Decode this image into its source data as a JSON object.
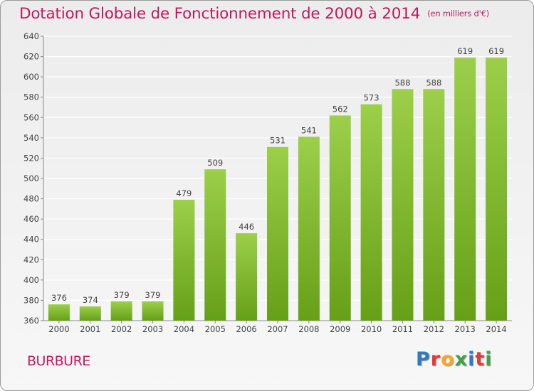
{
  "title": "Dotation Globale de Fonctionnement de 2000 à 2014",
  "unit": "(en milliers d'€)",
  "town": "BURBURE",
  "logo": {
    "letters": [
      "P",
      "r",
      "o",
      "x",
      "i",
      "t",
      "i"
    ],
    "colors": [
      "#2e7bc4",
      "#e53935",
      "#f9a825",
      "#43a047",
      "#2e7bc4",
      "#e53935",
      "#43a047"
    ]
  },
  "colors": {
    "accent": "#c2185b",
    "bar_top": "#9ccf4a",
    "bar_bottom": "#66a017",
    "grid": "#ffffff"
  },
  "chart_data": {
    "type": "bar",
    "categories": [
      "2000",
      "2001",
      "2002",
      "2003",
      "2004",
      "2005",
      "2006",
      "2007",
      "2008",
      "2009",
      "2010",
      "2011",
      "2012",
      "2013",
      "2014"
    ],
    "values": [
      376,
      374,
      379,
      379,
      479,
      509,
      446,
      531,
      541,
      562,
      573,
      588,
      588,
      619,
      619
    ],
    "data_labels": [
      "376",
      "374",
      "379",
      "379",
      "479",
      "509",
      "446",
      "531",
      "541",
      "562",
      "573",
      "588",
      "588",
      "619",
      "619"
    ],
    "ylim": [
      360,
      640
    ],
    "yticks": [
      360,
      380,
      400,
      420,
      440,
      460,
      480,
      500,
      520,
      540,
      560,
      580,
      600,
      620,
      640
    ],
    "grid": true,
    "xlabel": "",
    "ylabel": ""
  }
}
